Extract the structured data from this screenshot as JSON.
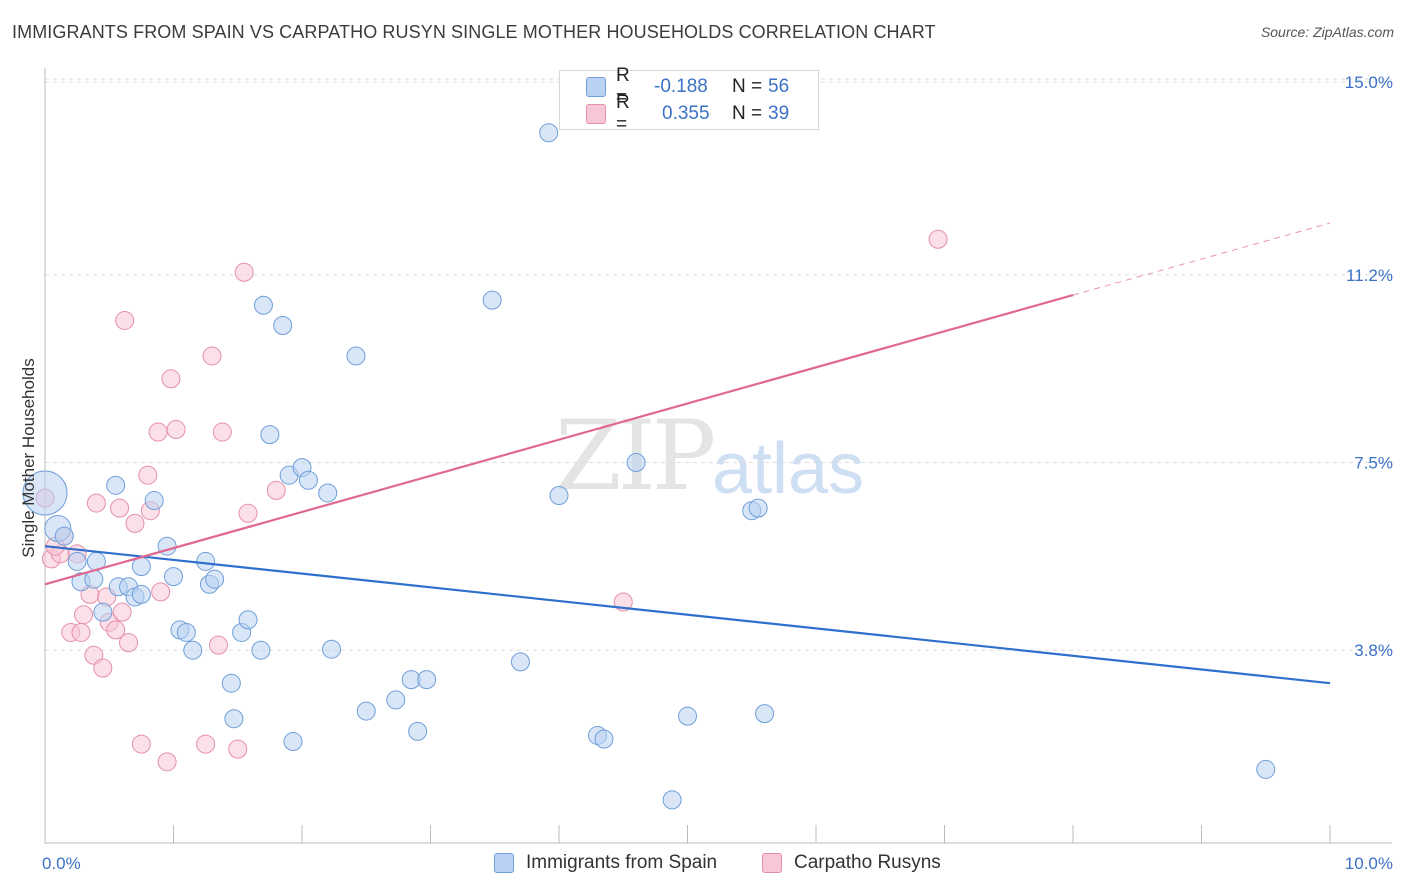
{
  "title": "IMMIGRANTS FROM SPAIN VS CARPATHO RUSYN SINGLE MOTHER HOUSEHOLDS CORRELATION CHART",
  "source": "Source: ZipAtlas.com",
  "watermark": {
    "zip": "ZIP",
    "atlas": "atlas"
  },
  "colors": {
    "blue_fill": "#b9d2f3",
    "blue_stroke": "#6f9fd8",
    "blue_line": "#2f6fce",
    "pink_fill": "#f8c7d6",
    "pink_stroke": "#e58faa",
    "pink_line": "#e06890",
    "accent_text": "#3b72c6"
  },
  "legend_top": [
    {
      "r_label": "R =",
      "r_value": "-0.188",
      "n_label": "N =",
      "n_value": "56",
      "series": "spain"
    },
    {
      "r_label": "R =",
      "r_value": "0.355",
      "n_label": "N =",
      "n_value": "39",
      "series": "rusyn"
    }
  ],
  "legend_bottom": [
    {
      "label": "Immigrants from Spain",
      "series": "spain"
    },
    {
      "label": "Carpatho Rusyns",
      "series": "rusyn"
    }
  ],
  "chart_data": {
    "type": "scatter",
    "title": "IMMIGRANTS FROM SPAIN VS CARPATHO RUSYN SINGLE MOTHER HOUSEHOLDS CORRELATION CHART",
    "xlabel": "",
    "ylabel": "Single Mother Households",
    "xlim": [
      0.0,
      10.0
    ],
    "ylim": [
      0.0,
      15.0
    ],
    "x_tick_labels": [
      "0.0%",
      "10.0%"
    ],
    "y_ticks": [
      3.8,
      7.5,
      11.2,
      15.0
    ],
    "y_tick_labels": [
      "3.8%",
      "7.5%",
      "11.2%",
      "15.0%"
    ],
    "grid": true,
    "series": [
      {
        "name": "Immigrants from Spain",
        "key": "spain",
        "trend": {
          "x0": 0.0,
          "y0": 5.85,
          "x1": 10.0,
          "y1": 3.15
        },
        "points": [
          [
            0.0,
            6.9,
            "large"
          ],
          [
            0.1,
            6.2,
            "med"
          ],
          [
            0.15,
            6.05
          ],
          [
            0.25,
            5.55
          ],
          [
            0.4,
            5.55
          ],
          [
            0.28,
            5.15
          ],
          [
            0.38,
            5.2
          ],
          [
            0.45,
            4.55
          ],
          [
            0.55,
            7.05
          ],
          [
            0.57,
            5.05
          ],
          [
            0.65,
            5.05
          ],
          [
            0.7,
            4.85
          ],
          [
            0.75,
            4.9
          ],
          [
            0.75,
            5.45
          ],
          [
            0.85,
            6.75
          ],
          [
            0.95,
            5.85
          ],
          [
            1.0,
            5.25
          ],
          [
            1.05,
            4.2
          ],
          [
            1.1,
            4.15
          ],
          [
            1.15,
            3.8
          ],
          [
            1.25,
            5.55
          ],
          [
            1.28,
            5.1
          ],
          [
            1.32,
            5.2
          ],
          [
            1.45,
            3.15
          ],
          [
            1.47,
            2.45
          ],
          [
            1.53,
            4.15
          ],
          [
            1.58,
            4.4
          ],
          [
            1.68,
            3.8
          ],
          [
            1.7,
            10.6
          ],
          [
            1.75,
            8.05
          ],
          [
            1.85,
            10.2
          ],
          [
            1.9,
            7.25
          ],
          [
            1.93,
            2.0
          ],
          [
            2.0,
            7.4
          ],
          [
            2.05,
            7.15
          ],
          [
            2.2,
            6.9
          ],
          [
            2.23,
            3.82
          ],
          [
            2.42,
            9.6
          ],
          [
            2.5,
            2.6
          ],
          [
            2.73,
            2.82
          ],
          [
            2.85,
            3.22
          ],
          [
            2.9,
            2.2
          ],
          [
            2.97,
            3.22
          ],
          [
            3.48,
            10.7
          ],
          [
            3.7,
            3.57
          ],
          [
            3.92,
            14.0
          ],
          [
            4.0,
            6.85
          ],
          [
            4.3,
            2.12
          ],
          [
            4.35,
            2.05
          ],
          [
            4.6,
            7.5
          ],
          [
            4.88,
            0.85
          ],
          [
            5.0,
            2.5
          ],
          [
            5.5,
            6.55
          ],
          [
            5.55,
            6.6
          ],
          [
            5.6,
            2.55
          ],
          [
            9.5,
            1.45
          ]
        ]
      },
      {
        "name": "Carpatho Rusyns",
        "key": "rusyn",
        "trend": {
          "x0": 0.0,
          "y0": 5.1,
          "x1": 8.0,
          "y1": 10.8,
          "dash_to_x": 10.0,
          "dash_to_y": 12.22
        },
        "points": [
          [
            0.0,
            6.8
          ],
          [
            0.05,
            5.6
          ],
          [
            0.12,
            5.7
          ],
          [
            0.15,
            6.05
          ],
          [
            0.2,
            4.15
          ],
          [
            0.25,
            5.7
          ],
          [
            0.28,
            4.15
          ],
          [
            0.3,
            4.5
          ],
          [
            0.35,
            4.9
          ],
          [
            0.38,
            3.7
          ],
          [
            0.4,
            6.7
          ],
          [
            0.45,
            3.45
          ],
          [
            0.48,
            4.85
          ],
          [
            0.5,
            4.35
          ],
          [
            0.55,
            4.2
          ],
          [
            0.58,
            6.6
          ],
          [
            0.6,
            4.55
          ],
          [
            0.62,
            10.3
          ],
          [
            0.65,
            3.95
          ],
          [
            0.7,
            6.3
          ],
          [
            0.75,
            1.95
          ],
          [
            0.8,
            7.25
          ],
          [
            0.82,
            6.55
          ],
          [
            0.88,
            8.1
          ],
          [
            0.9,
            4.95
          ],
          [
            0.95,
            1.6
          ],
          [
            0.98,
            9.15
          ],
          [
            1.02,
            8.15
          ],
          [
            1.25,
            1.95
          ],
          [
            1.3,
            9.6
          ],
          [
            1.35,
            3.9
          ],
          [
            1.38,
            8.1
          ],
          [
            1.5,
            1.85
          ],
          [
            1.55,
            11.25
          ],
          [
            1.58,
            6.5
          ],
          [
            1.8,
            6.95
          ],
          [
            4.5,
            4.75
          ],
          [
            6.95,
            11.9
          ],
          [
            0.08,
            5.85
          ]
        ]
      }
    ]
  }
}
